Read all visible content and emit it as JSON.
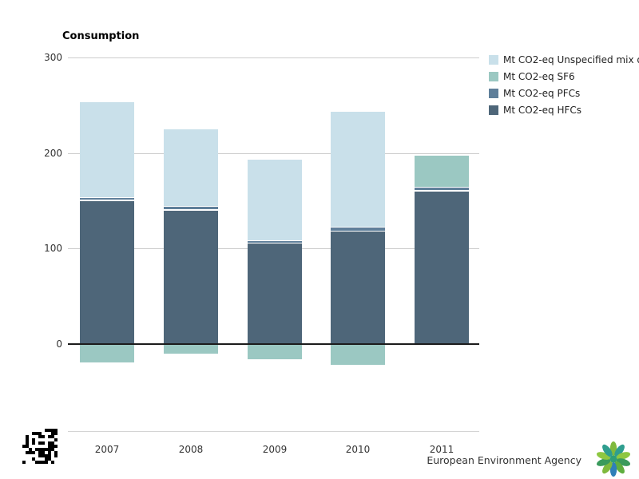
{
  "title": "Consumption",
  "legend": [
    {
      "label": "Mt CO2-eq Unspecified mix o",
      "color": "#c9e0ea"
    },
    {
      "label": "Mt CO2-eq SF6",
      "color": "#9bc8c2"
    },
    {
      "label": "Mt CO2-eq PFCs",
      "color": "#5f7f9a"
    },
    {
      "label": "Mt CO2-eq HFCs",
      "color": "#4e6679"
    }
  ],
  "chart_data": {
    "type": "bar",
    "stacked": true,
    "title": "Consumption",
    "categories": [
      "2007",
      "2008",
      "2009",
      "2010",
      "2011"
    ],
    "series": [
      {
        "name": "Mt CO2-eq HFCs",
        "color": "#4e6679",
        "values": [
          150,
          140,
          105,
          118,
          160
        ]
      },
      {
        "name": "Mt CO2-eq PFCs",
        "color": "#5f7f9a",
        "values": [
          3,
          4,
          3,
          4,
          4
        ]
      },
      {
        "name": "Mt CO2-eq SF6",
        "color": "#9bc8c2",
        "values": [
          -19,
          -10,
          -16,
          -22,
          33
        ]
      },
      {
        "name": "Mt CO2-eq Unspecified mix",
        "color": "#c9e0ea",
        "values": [
          100,
          81,
          85,
          121,
          0
        ]
      }
    ],
    "xlabel": "",
    "ylabel": "",
    "yticks": [
      0,
      100,
      200,
      300
    ],
    "ylim": [
      -91,
      300
    ],
    "grid": true,
    "legend_position": "top-right"
  },
  "footer": {
    "agency": "European Environment Agency"
  },
  "colors": {
    "gridline": "#cccccc",
    "zero_line": "#1c1c1c",
    "axis_text": "#333333"
  }
}
